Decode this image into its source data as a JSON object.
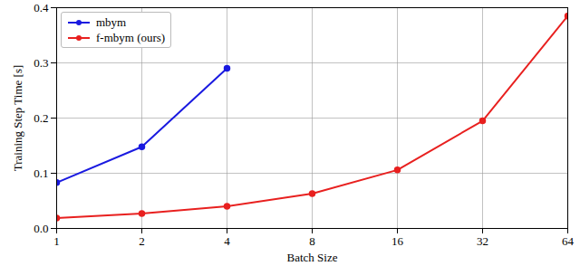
{
  "chart_data": {
    "type": "line",
    "x_label": "Batch Size",
    "y_label": "Training Step Time [s]",
    "x": [
      1,
      2,
      4,
      8,
      16,
      32,
      64
    ],
    "series": [
      {
        "name": "mbym",
        "color": "#1a1ae0",
        "marker": "circle",
        "values": [
          0.083,
          0.148,
          0.29,
          null,
          null,
          null,
          null
        ]
      },
      {
        "name": "f-mbym (ours)",
        "color": "#e8201f",
        "marker": "circle",
        "values": [
          0.019,
          0.027,
          0.04,
          0.063,
          0.106,
          0.195,
          0.385
        ]
      }
    ],
    "xlim": [
      1,
      64
    ],
    "xticks": [
      1,
      2,
      4,
      8,
      16,
      32,
      64
    ],
    "ylim": [
      0,
      0.4
    ],
    "yticks": [
      {
        "value": 0,
        "label": "0.0"
      },
      0.1,
      0.2,
      0.3,
      0.4
    ],
    "log": "x",
    "grid": true,
    "legend": "upper left"
  }
}
